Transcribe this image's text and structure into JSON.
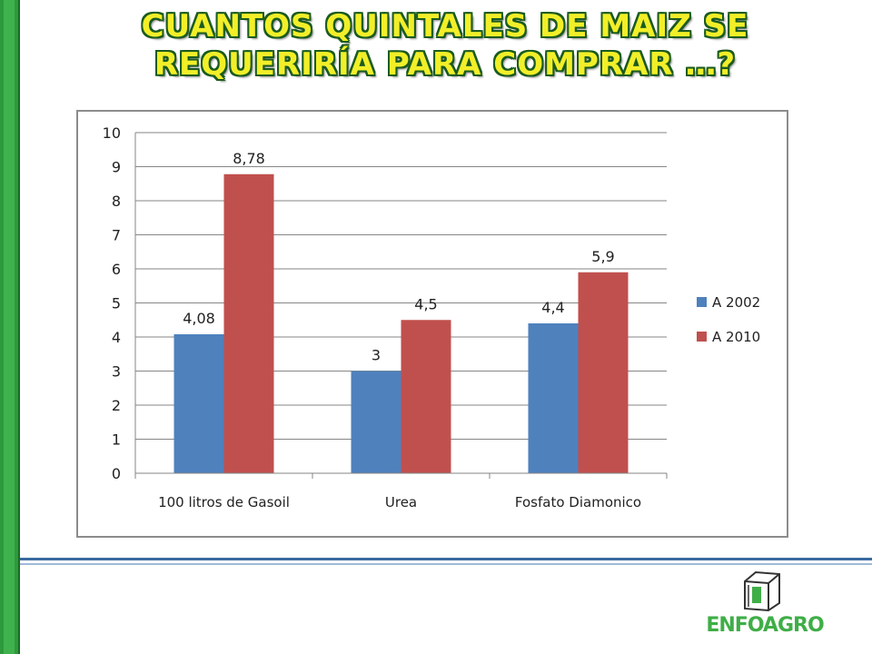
{
  "title": "CUANTOS QUINTALES DE MAIZ SE REQUERIRÍA PARA COMPRAR …?",
  "logo": {
    "text": "ENFOAGRO",
    "icon": "box-icon",
    "color": "#3fae47"
  },
  "colors": {
    "side_bar": "#2e9a3c",
    "title_fill": "#f2ef29",
    "title_outline": "#1a5b1f"
  },
  "chart_data": {
    "type": "bar",
    "categories": [
      "100 litros de Gasoil",
      "Urea",
      "Fosfato Diamonico"
    ],
    "series": [
      {
        "name": "A 2002",
        "color": "#4f81bd",
        "values": [
          4.08,
          3,
          4.4
        ],
        "labels": [
          "4,08",
          "3",
          "4,4"
        ]
      },
      {
        "name": "A 2010",
        "color": "#c0504d",
        "values": [
          8.78,
          4.5,
          5.9
        ],
        "labels": [
          "8,78",
          "4,5",
          "5,9"
        ]
      }
    ],
    "ylim": [
      0,
      10
    ],
    "yticks": [
      0,
      1,
      2,
      3,
      4,
      5,
      6,
      7,
      8,
      9,
      10
    ],
    "grid": true,
    "legend": "right"
  }
}
